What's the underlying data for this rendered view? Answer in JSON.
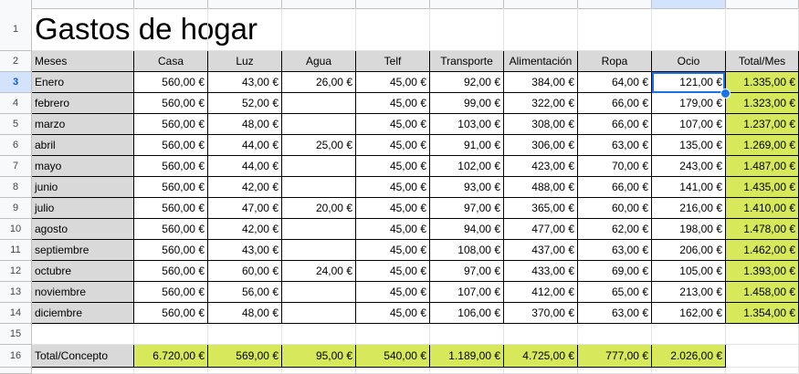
{
  "sheet": {
    "title": "Gastos de hogar",
    "headers": [
      "Meses",
      "Casa",
      "Luz",
      "Agua",
      "Telf",
      "Transporte",
      "Alimentación",
      "Ropa",
      "Ocio",
      "Total/Mes"
    ],
    "row_numbers": [
      "1",
      "2",
      "3",
      "4",
      "5",
      "6",
      "7",
      "8",
      "9",
      "10",
      "11",
      "12",
      "13",
      "14",
      "15",
      "16"
    ],
    "rows": [
      [
        "Enero",
        "560,00 €",
        "43,00 €",
        "26,00 €",
        "45,00 €",
        "92,00 €",
        "384,00 €",
        "64,00 €",
        "121,00 €",
        "1.335,00 €"
      ],
      [
        "febrero",
        "560,00 €",
        "52,00 €",
        "",
        "45,00 €",
        "99,00 €",
        "322,00 €",
        "66,00 €",
        "179,00 €",
        "1.323,00 €"
      ],
      [
        "marzo",
        "560,00 €",
        "48,00 €",
        "",
        "45,00 €",
        "103,00 €",
        "308,00 €",
        "66,00 €",
        "107,00 €",
        "1.237,00 €"
      ],
      [
        "abril",
        "560,00 €",
        "44,00 €",
        "25,00 €",
        "45,00 €",
        "91,00 €",
        "306,00 €",
        "63,00 €",
        "135,00 €",
        "1.269,00 €"
      ],
      [
        "mayo",
        "560,00 €",
        "44,00 €",
        "",
        "45,00 €",
        "102,00 €",
        "423,00 €",
        "70,00 €",
        "243,00 €",
        "1.487,00 €"
      ],
      [
        "junio",
        "560,00 €",
        "42,00 €",
        "",
        "45,00 €",
        "93,00 €",
        "488,00 €",
        "66,00 €",
        "141,00 €",
        "1.435,00 €"
      ],
      [
        "julio",
        "560,00 €",
        "47,00 €",
        "20,00 €",
        "45,00 €",
        "97,00 €",
        "365,00 €",
        "60,00 €",
        "216,00 €",
        "1.410,00 €"
      ],
      [
        "agosto",
        "560,00 €",
        "42,00 €",
        "",
        "45,00 €",
        "94,00 €",
        "477,00 €",
        "62,00 €",
        "198,00 €",
        "1.478,00 €"
      ],
      [
        "septiembre",
        "560,00 €",
        "43,00 €",
        "",
        "45,00 €",
        "108,00 €",
        "437,00 €",
        "63,00 €",
        "206,00 €",
        "1.462,00 €"
      ],
      [
        "octubre",
        "560,00 €",
        "60,00 €",
        "24,00 €",
        "45,00 €",
        "97,00 €",
        "433,00 €",
        "69,00 €",
        "105,00 €",
        "1.393,00 €"
      ],
      [
        "noviembre",
        "560,00 €",
        "56,00 €",
        "",
        "45,00 €",
        "107,00 €",
        "412,00 €",
        "65,00 €",
        "213,00 €",
        "1.458,00 €"
      ],
      [
        "diciembre",
        "560,00 €",
        "48,00 €",
        "",
        "45,00 €",
        "106,00 €",
        "370,00 €",
        "63,00 €",
        "162,00 €",
        "1.354,00 €"
      ]
    ],
    "totals": [
      "Total/Concepto",
      "6.720,00 €",
      "569,00 €",
      "95,00 €",
      "540,00 €",
      "1.189,00 €",
      "4.725,00 €",
      "777,00 €",
      "2.026,00 €",
      ""
    ],
    "selected_cell": "I3"
  },
  "colors": {
    "header_gray": "#d9d9d9",
    "total_green": "#d7e85a",
    "selection_blue": "#1a73e8"
  }
}
